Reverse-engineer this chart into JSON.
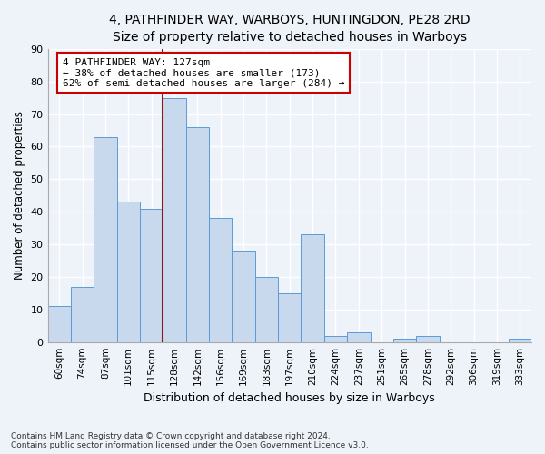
{
  "title1": "4, PATHFINDER WAY, WARBOYS, HUNTINGDON, PE28 2RD",
  "title2": "Size of property relative to detached houses in Warboys",
  "xlabel": "Distribution of detached houses by size in Warboys",
  "ylabel": "Number of detached properties",
  "categories": [
    "60sqm",
    "74sqm",
    "87sqm",
    "101sqm",
    "115sqm",
    "128sqm",
    "142sqm",
    "156sqm",
    "169sqm",
    "183sqm",
    "197sqm",
    "210sqm",
    "224sqm",
    "237sqm",
    "251sqm",
    "265sqm",
    "278sqm",
    "292sqm",
    "306sqm",
    "319sqm",
    "333sqm"
  ],
  "values": [
    11,
    17,
    63,
    43,
    41,
    75,
    66,
    38,
    28,
    20,
    15,
    33,
    2,
    3,
    0,
    1,
    2,
    0,
    0,
    0,
    1
  ],
  "bar_color": "#c9d9ed",
  "bar_edge_color": "#5b9bd5",
  "vline_index": 5,
  "vline_color": "#8b1a1a",
  "annotation_text": "4 PATHFINDER WAY: 127sqm\n← 38% of detached houses are smaller (173)\n62% of semi-detached houses are larger (284) →",
  "annotation_box_color": "white",
  "annotation_box_edge": "#cc0000",
  "ylim": [
    0,
    90
  ],
  "yticks": [
    0,
    10,
    20,
    30,
    40,
    50,
    60,
    70,
    80,
    90
  ],
  "footnote": "Contains HM Land Registry data © Crown copyright and database right 2024.\nContains public sector information licensed under the Open Government Licence v3.0.",
  "bg_color": "#eef2f9",
  "grid_color": "white",
  "title1_fontsize": 10,
  "title2_fontsize": 9
}
